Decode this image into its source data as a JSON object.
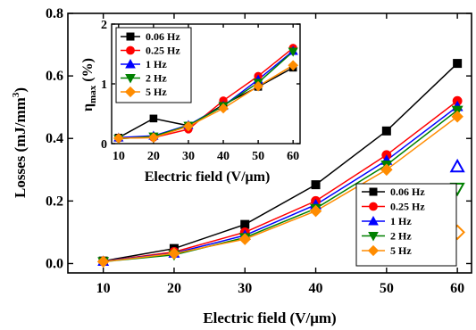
{
  "chart_data": [
    {
      "id": "main",
      "type": "line",
      "xlabel": "Electric field (V/μm)",
      "ylabel": "Losses (mJ/mm3)",
      "ylabel_base": "Losses (mJ/mm",
      "ylabel_sup": "3",
      "ylabel_close": ")",
      "xlim": [
        5,
        62
      ],
      "ylim": [
        -0.03,
        0.8
      ],
      "xticks": [
        "10",
        "20",
        "30",
        "40",
        "50",
        "60"
      ],
      "xtick_values": [
        10,
        20,
        30,
        40,
        50,
        60
      ],
      "yticks": [
        "0.0",
        "0.2",
        "0.4",
        "0.6",
        "0.8"
      ],
      "ytick_values": [
        0.0,
        0.2,
        0.4,
        0.6,
        0.8
      ],
      "x": [
        10,
        20,
        30,
        40,
        50,
        60
      ],
      "legend_position": "lower-right",
      "series": [
        {
          "name": "0.06 Hz",
          "color": "#000000",
          "marker": "square",
          "values": [
            0.008,
            0.048,
            0.125,
            0.252,
            0.424,
            0.64
          ]
        },
        {
          "name": "0.25 Hz",
          "color": "#ff0000",
          "marker": "circle",
          "values": [
            0.007,
            0.037,
            0.1,
            0.2,
            0.347,
            0.52
          ]
        },
        {
          "name": "1 Hz",
          "color": "#0000ff",
          "marker": "triangle-up",
          "values": [
            0.007,
            0.033,
            0.09,
            0.188,
            0.33,
            0.502
          ]
        },
        {
          "name": "2 Hz",
          "color": "#008000",
          "marker": "triangle-down",
          "values": [
            0.006,
            0.028,
            0.083,
            0.176,
            0.315,
            0.49
          ]
        },
        {
          "name": "5 Hz",
          "color": "#ff8c00",
          "marker": "diamond",
          "values": [
            0.006,
            0.032,
            0.078,
            0.168,
            0.3,
            0.47
          ]
        }
      ],
      "open_markers": [
        {
          "marker": "triangle-up",
          "color": "#0000ff",
          "x": 60,
          "y": 0.31
        },
        {
          "marker": "triangle-down",
          "color": "#008000",
          "x": 60,
          "y": 0.24
        },
        {
          "marker": "diamond",
          "color": "#ff8c00",
          "x": 60,
          "y": 0.1
        }
      ]
    },
    {
      "id": "inset",
      "type": "line",
      "xlabel": "Electric field (V/μm)",
      "ylabel": "ηmax (%)",
      "ylabel_eta": "η",
      "ylabel_sub": "max",
      "ylabel_unit": " (%)",
      "xlim": [
        8,
        62
      ],
      "ylim": [
        0,
        2
      ],
      "xticks": [
        "10",
        "20",
        "30",
        "40",
        "50",
        "60"
      ],
      "xtick_values": [
        10,
        20,
        30,
        40,
        50,
        60
      ],
      "yticks": [
        "0",
        "1",
        "2"
      ],
      "ytick_values": [
        0,
        1,
        2
      ],
      "x": [
        10,
        20,
        30,
        40,
        50,
        60
      ],
      "legend_position": "top-left",
      "series": [
        {
          "name": "0.06 Hz",
          "color": "#000000",
          "marker": "square",
          "values": [
            0.1,
            0.42,
            0.3,
            0.65,
            0.95,
            1.27
          ]
        },
        {
          "name": "0.25 Hz",
          "color": "#ff0000",
          "marker": "circle",
          "values": [
            0.09,
            0.1,
            0.24,
            0.72,
            1.13,
            1.6
          ]
        },
        {
          "name": "1 Hz",
          "color": "#0000ff",
          "marker": "triangle-up",
          "values": [
            0.1,
            0.13,
            0.31,
            0.63,
            1.07,
            1.55
          ]
        },
        {
          "name": "2 Hz",
          "color": "#008000",
          "marker": "triangle-down",
          "values": [
            0.08,
            0.12,
            0.3,
            0.63,
            1.02,
            1.54
          ]
        },
        {
          "name": "5 Hz",
          "color": "#ff8c00",
          "marker": "diamond",
          "values": [
            0.09,
            0.1,
            0.29,
            0.59,
            0.96,
            1.31
          ]
        }
      ]
    }
  ]
}
